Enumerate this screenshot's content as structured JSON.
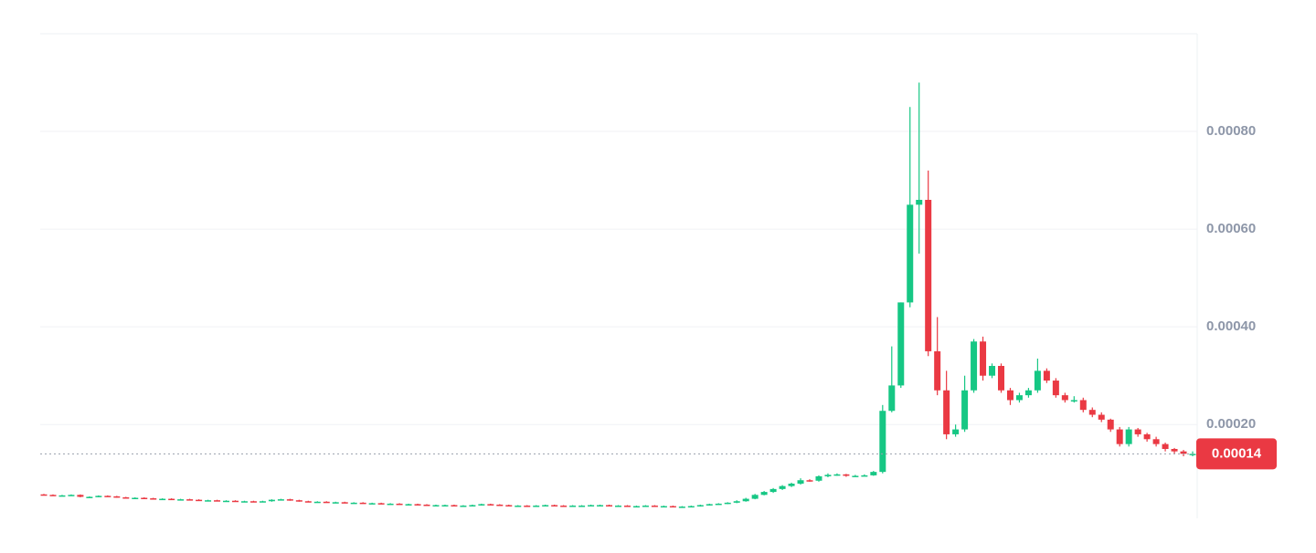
{
  "chart_data": {
    "type": "candlestick",
    "up_color": "#16c784",
    "down_color": "#ea3943",
    "grid": true,
    "ylim": [
      8e-06,
      0.001
    ],
    "yticks": [
      {
        "value": 0.0002,
        "label": "0.00020"
      },
      {
        "value": 0.0004,
        "label": "0.00040"
      },
      {
        "value": 0.0006,
        "label": "0.00060"
      },
      {
        "value": 0.0008,
        "label": "0.00080"
      }
    ],
    "last_price": 0.00014,
    "open": [
      5.7e-05,
      5.6e-05,
      5.5e-05,
      5.5e-05,
      5.6e-05,
      5.2e-05,
      5.2e-05,
      5.4e-05,
      5.3e-05,
      5.1e-05,
      5e-05,
      5e-05,
      4.9e-05,
      4.8e-05,
      4.8e-05,
      4.7e-05,
      4.7e-05,
      4.6e-05,
      4.5e-05,
      4.5e-05,
      4.4e-05,
      4.4e-05,
      4.3e-05,
      4.3e-05,
      4.2e-05,
      4.3e-05,
      4.6e-05,
      4.7e-05,
      4.5e-05,
      4.3e-05,
      4.2e-05,
      4.2e-05,
      4.1e-05,
      4.1e-05,
      4e-05,
      4e-05,
      3.9e-05,
      3.9e-05,
      3.8e-05,
      3.8e-05,
      3.7e-05,
      3.7e-05,
      3.6e-05,
      3.5e-05,
      3.5e-05,
      3.5e-05,
      3.4e-05,
      3.4e-05,
      3.5e-05,
      3.7e-05,
      3.6e-05,
      3.5e-05,
      3.4e-05,
      3.4e-05,
      3.3e-05,
      3.4e-05,
      3.5e-05,
      3.4e-05,
      3.3e-05,
      3.4e-05,
      3.4e-05,
      3.5e-05,
      3.5e-05,
      3.4e-05,
      3.4e-05,
      3.3e-05,
      3.3e-05,
      3.4e-05,
      3.3e-05,
      3.3e-05,
      3.2e-05,
      3.2e-05,
      3.3e-05,
      3.5e-05,
      3.7e-05,
      3.8e-05,
      4e-05,
      4.3e-05,
      4.8e-05,
      5.6e-05,
      6.2e-05,
      6.8e-05,
      7.4e-05,
      7.9e-05,
      8.6e-05,
      8.5e-05,
      9.4e-05,
      9.7e-05,
      9.8e-05,
      9.5e-05,
      9.5e-05,
      9.6e-05,
      0.000103,
      0.000228,
      0.00028,
      0.00045,
      0.00065,
      0.00066,
      0.00035,
      0.00027,
      0.00018,
      0.00019,
      0.00027,
      0.00037,
      0.0003,
      0.00032,
      0.00027,
      0.00025,
      0.00026,
      0.00027,
      0.00031,
      0.00029,
      0.00026,
      0.00025,
      0.00025,
      0.00023,
      0.00022,
      0.00021,
      0.00019,
      0.00016,
      0.00019,
      0.00018,
      0.00017,
      0.00016,
      0.00015,
      0.000145,
      0.00014
    ],
    "high": [
      5.8e-05,
      5.7e-05,
      5.6e-05,
      5.7e-05,
      5.7e-05,
      5.3e-05,
      5.5e-05,
      5.5e-05,
      5.4e-05,
      5.2e-05,
      5.1e-05,
      5.1e-05,
      5e-05,
      4.9e-05,
      4.9e-05,
      4.8e-05,
      4.8e-05,
      4.7e-05,
      4.6e-05,
      4.6e-05,
      4.5e-05,
      4.5e-05,
      4.4e-05,
      4.4e-05,
      4.4e-05,
      4.7e-05,
      4.8e-05,
      4.8e-05,
      4.6e-05,
      4.4e-05,
      4.3e-05,
      4.3e-05,
      4.2e-05,
      4.2e-05,
      4.1e-05,
      4.1e-05,
      4e-05,
      4e-05,
      3.9e-05,
      3.9e-05,
      3.8e-05,
      3.8e-05,
      3.7e-05,
      3.6e-05,
      3.6e-05,
      3.6e-05,
      3.5e-05,
      3.6e-05,
      3.8e-05,
      3.8e-05,
      3.7e-05,
      3.6e-05,
      3.5e-05,
      3.5e-05,
      3.5e-05,
      3.6e-05,
      3.6e-05,
      3.5e-05,
      3.5e-05,
      3.5e-05,
      3.6e-05,
      3.6e-05,
      3.6e-05,
      3.5e-05,
      3.5e-05,
      3.4e-05,
      3.5e-05,
      3.5e-05,
      3.4e-05,
      3.4e-05,
      3.3e-05,
      3.4e-05,
      3.6e-05,
      3.8e-05,
      3.9e-05,
      4.1e-05,
      4.5e-05,
      5e-05,
      5.8e-05,
      6.4e-05,
      7e-05,
      7.6e-05,
      8.1e-05,
      9e-05,
      8.8e-05,
      9.6e-05,
      0.0001,
      0.0001,
      9.9e-05,
      9.7e-05,
      9.8e-05,
      0.000105,
      0.00024,
      0.00036,
      0.00045,
      0.00085,
      0.0009,
      0.00072,
      0.00042,
      0.00031,
      0.0002,
      0.0003,
      0.000375,
      0.00038,
      0.000325,
      0.000325,
      0.000275,
      0.000265,
      0.000275,
      0.000335,
      0.000315,
      0.000295,
      0.000265,
      0.000258,
      0.000255,
      0.000235,
      0.000225,
      0.000212,
      0.000195,
      0.000195,
      0.000193,
      0.000183,
      0.000175,
      0.000163,
      0.000152,
      0.000148,
      0.000145
    ],
    "low": [
      5.5e-05,
      5.4e-05,
      5.4e-05,
      5.4e-05,
      5.1e-05,
      5.1e-05,
      5.1e-05,
      5.2e-05,
      5e-05,
      4.9e-05,
      4.9e-05,
      4.8e-05,
      4.7e-05,
      4.7e-05,
      4.6e-05,
      4.6e-05,
      4.5e-05,
      4.4e-05,
      4.4e-05,
      4.3e-05,
      4.3e-05,
      4.2e-05,
      4.2e-05,
      4.1e-05,
      4.1e-05,
      4.2e-05,
      4.5e-05,
      4.4e-05,
      4.2e-05,
      4.1e-05,
      4.1e-05,
      4e-05,
      4e-05,
      3.9e-05,
      3.9e-05,
      3.8e-05,
      3.8e-05,
      3.7e-05,
      3.7e-05,
      3.6e-05,
      3.6e-05,
      3.5e-05,
      3.4e-05,
      3.4e-05,
      3.4e-05,
      3.3e-05,
      3.3e-05,
      3.3e-05,
      3.4e-05,
      3.5e-05,
      3.4e-05,
      3.3e-05,
      3.3e-05,
      3.2e-05,
      3.2e-05,
      3.3e-05,
      3.3e-05,
      3.2e-05,
      3.2e-05,
      3.3e-05,
      3.3e-05,
      3.4e-05,
      3.3e-05,
      3.3e-05,
      3.2e-05,
      3.2e-05,
      3.2e-05,
      3.2e-05,
      3.2e-05,
      3.1e-05,
      3.1e-05,
      3.1e-05,
      3.2e-05,
      3.4e-05,
      3.6e-05,
      3.7e-05,
      3.9e-05,
      4.2e-05,
      4.7e-05,
      5.5e-05,
      6e-05,
      6.6e-05,
      7.2e-05,
      7.7e-05,
      8.3e-05,
      8.3e-05,
      9.2e-05,
      9.5e-05,
      9.3e-05,
      9.3e-05,
      9.4e-05,
      9.5e-05,
      0.0001,
      0.000225,
      0.000275,
      0.00044,
      0.00055,
      0.00034,
      0.00026,
      0.00017,
      0.000175,
      0.000185,
      0.000265,
      0.00029,
      0.000295,
      0.000265,
      0.00024,
      0.000245,
      0.000255,
      0.000265,
      0.000285,
      0.000255,
      0.000245,
      0.000245,
      0.000225,
      0.000215,
      0.000205,
      0.000185,
      0.000155,
      0.000155,
      0.000175,
      0.000165,
      0.000155,
      0.000145,
      0.00014,
      0.000135,
      0.000135
    ],
    "close": [
      5.6e-05,
      5.5e-05,
      5.5e-05,
      5.6e-05,
      5.2e-05,
      5.2e-05,
      5.4e-05,
      5.3e-05,
      5.1e-05,
      5e-05,
      5e-05,
      4.9e-05,
      4.8e-05,
      4.8e-05,
      4.7e-05,
      4.7e-05,
      4.6e-05,
      4.5e-05,
      4.5e-05,
      4.4e-05,
      4.4e-05,
      4.3e-05,
      4.3e-05,
      4.2e-05,
      4.3e-05,
      4.6e-05,
      4.7e-05,
      4.5e-05,
      4.3e-05,
      4.2e-05,
      4.2e-05,
      4.1e-05,
      4.1e-05,
      4e-05,
      4e-05,
      3.9e-05,
      3.9e-05,
      3.8e-05,
      3.8e-05,
      3.7e-05,
      3.7e-05,
      3.6e-05,
      3.5e-05,
      3.5e-05,
      3.5e-05,
      3.4e-05,
      3.4e-05,
      3.5e-05,
      3.7e-05,
      3.6e-05,
      3.5e-05,
      3.4e-05,
      3.4e-05,
      3.3e-05,
      3.4e-05,
      3.5e-05,
      3.4e-05,
      3.3e-05,
      3.4e-05,
      3.4e-05,
      3.5e-05,
      3.5e-05,
      3.4e-05,
      3.4e-05,
      3.3e-05,
      3.3e-05,
      3.4e-05,
      3.3e-05,
      3.3e-05,
      3.2e-05,
      3.2e-05,
      3.3e-05,
      3.5e-05,
      3.7e-05,
      3.8e-05,
      4e-05,
      4.3e-05,
      4.8e-05,
      5.6e-05,
      6.2e-05,
      6.8e-05,
      7.4e-05,
      7.9e-05,
      8.6e-05,
      8.5e-05,
      9.4e-05,
      9.7e-05,
      9.8e-05,
      9.5e-05,
      9.5e-05,
      9.6e-05,
      0.000103,
      0.000228,
      0.00028,
      0.00045,
      0.00065,
      0.00066,
      0.00035,
      0.00027,
      0.00018,
      0.00019,
      0.00027,
      0.00037,
      0.0003,
      0.00032,
      0.00027,
      0.00025,
      0.00026,
      0.00027,
      0.00031,
      0.00029,
      0.00026,
      0.00025,
      0.00025,
      0.00023,
      0.00022,
      0.00021,
      0.00019,
      0.00016,
      0.00019,
      0.00018,
      0.00017,
      0.00016,
      0.00015,
      0.000145,
      0.00014,
      0.00014
    ]
  }
}
